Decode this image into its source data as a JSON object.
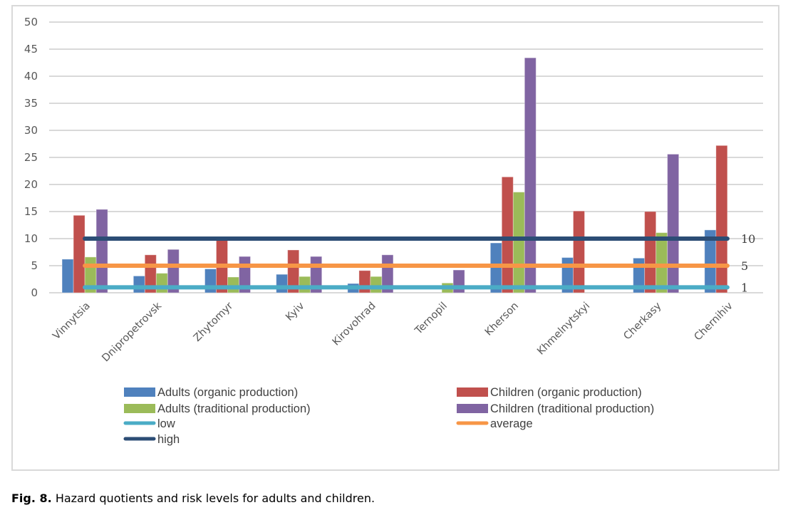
{
  "chart_data": {
    "type": "bar",
    "title": "",
    "xlabel": "",
    "ylabel": "",
    "ylim": [
      0,
      50
    ],
    "yticks": [
      0,
      5,
      10,
      15,
      20,
      25,
      30,
      35,
      40,
      45,
      50
    ],
    "grid": true,
    "legend_position": "bottom",
    "categories": [
      "Vinnytsia",
      "Dnipropetrovsk",
      "Zhytomyr",
      "Kyiv",
      "Kirovohrad",
      "Ternopil",
      "Kherson",
      "Khmelnytskyi",
      "Cherkasy",
      "Chernihiv"
    ],
    "series": [
      {
        "name": "Adults (organic production)",
        "color": "#4f81bd",
        "values": [
          6.2,
          3.1,
          4.4,
          3.4,
          1.7,
          null,
          9.2,
          6.5,
          6.4,
          11.6
        ]
      },
      {
        "name": "Children (organic production)",
        "color": "#c0504d",
        "values": [
          14.3,
          7.0,
          9.7,
          7.9,
          4.1,
          null,
          21.4,
          15.1,
          15.0,
          27.2
        ]
      },
      {
        "name": "Adults (traditional production)",
        "color": "#9bbb59",
        "values": [
          6.6,
          3.6,
          2.9,
          3.0,
          3.0,
          1.8,
          18.6,
          null,
          11.1,
          null
        ]
      },
      {
        "name": "Children (traditional production)",
        "color": "#8064a2",
        "values": [
          15.4,
          8.0,
          6.7,
          6.7,
          7.0,
          4.2,
          43.4,
          null,
          25.6,
          null
        ]
      }
    ],
    "reference_lines": [
      {
        "name": "low",
        "value": 1,
        "label": "1",
        "color": "#4bacc6"
      },
      {
        "name": "average",
        "value": 5,
        "label": "5",
        "color": "#f79646"
      },
      {
        "name": "high",
        "value": 10,
        "label": "10",
        "color": "#2c4d75"
      }
    ]
  },
  "caption": {
    "figure_number": "Fig. 8.",
    "text": " Hazard quotients and risk levels for adults and children."
  }
}
